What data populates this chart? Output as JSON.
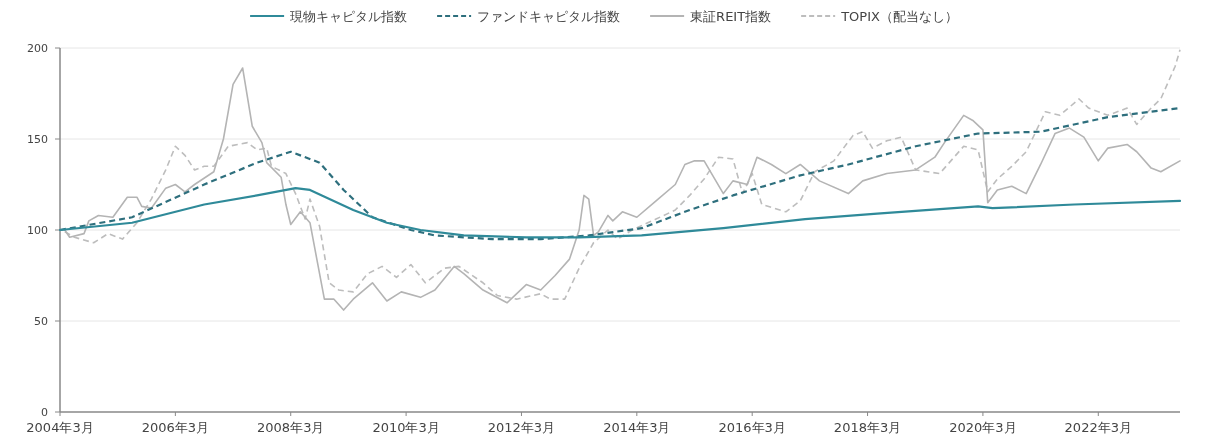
{
  "chart_data": {
    "type": "line",
    "legend": "top",
    "grid": "y",
    "marker": "none",
    "ylim": [
      0,
      200
    ],
    "yticks": [
      0,
      50,
      100,
      150,
      200
    ],
    "xlim": [
      "2004-03",
      "2023-08"
    ],
    "xticks": [
      {
        "value": "2004-03",
        "label": "2004年3月"
      },
      {
        "value": "2006-03",
        "label": "2006年3月"
      },
      {
        "value": "2008-03",
        "label": "2008年3月"
      },
      {
        "value": "2010-03",
        "label": "2010年3月"
      },
      {
        "value": "2012-03",
        "label": "2012年3月"
      },
      {
        "value": "2014-03",
        "label": "2014年3月"
      },
      {
        "value": "2016-03",
        "label": "2016年3月"
      },
      {
        "value": "2018-03",
        "label": "2018年3月"
      },
      {
        "value": "2020-03",
        "label": "2020年3月"
      },
      {
        "value": "2022-03",
        "label": "2022年3月"
      }
    ],
    "series": [
      {
        "name": "現物キャピタル指数",
        "color": "#2f8a99",
        "line_style": "solid",
        "x": [
          "2004-03",
          "2005-06",
          "2006-09",
          "2007-08",
          "2008-04",
          "2008-07",
          "2009-04",
          "2009-11",
          "2010-06",
          "2011-03",
          "2012-04",
          "2013-03",
          "2014-04",
          "2015-09",
          "2017-02",
          "2018-05",
          "2020-02",
          "2020-05",
          "2021-10",
          "2023-08"
        ],
        "values": [
          100,
          104,
          114,
          119,
          123,
          122,
          111,
          104,
          100,
          97,
          96,
          96,
          97,
          101,
          106,
          109,
          113,
          112,
          114,
          116
        ]
      },
      {
        "name": "ファンドキャピタル指数",
        "color": "#2e6f7d",
        "line_style": "dashed",
        "x": [
          "2004-03",
          "2005-06",
          "2006-09",
          "2007-08",
          "2008-03",
          "2008-09",
          "2009-02",
          "2009-08",
          "2010-04",
          "2010-09",
          "2011-09",
          "2012-07",
          "2013-05",
          "2014-04",
          "2015-02",
          "2015-11",
          "2017-01",
          "2017-11",
          "2019-01",
          "2020-02",
          "2021-03",
          "2022-05",
          "2023-08"
        ],
        "values": [
          100,
          107,
          125,
          137,
          143,
          137,
          122,
          107,
          100,
          97,
          95,
          95,
          97,
          101,
          111,
          119,
          130,
          136,
          146,
          153,
          154,
          162,
          167
        ]
      },
      {
        "name": "東証REIT指数",
        "color": "#b4b4b4",
        "line_style": "solid",
        "x": [
          "2004-04",
          "2004-05",
          "2004-08",
          "2004-09",
          "2004-11",
          "2005-02",
          "2005-05",
          "2005-07",
          "2005-08",
          "2005-10",
          "2006-01",
          "2006-03",
          "2006-05",
          "2006-07",
          "2006-11",
          "2007-01",
          "2007-03",
          "2007-05",
          "2007-07",
          "2007-09",
          "2007-10",
          "2008-01",
          "2008-02",
          "2008-03",
          "2008-05",
          "2008-07",
          "2008-08",
          "2008-10",
          "2008-12",
          "2009-02",
          "2009-04",
          "2009-08",
          "2009-11",
          "2010-02",
          "2010-06",
          "2010-09",
          "2011-01",
          "2011-03",
          "2011-07",
          "2011-12",
          "2012-04",
          "2012-07",
          "2012-10",
          "2013-01",
          "2013-03",
          "2013-04",
          "2013-05",
          "2013-06",
          "2013-07",
          "2013-09",
          "2013-10",
          "2013-12",
          "2014-03",
          "2014-07",
          "2014-11",
          "2015-01",
          "2015-03",
          "2015-05",
          "2015-09",
          "2015-11",
          "2016-02",
          "2016-04",
          "2016-07",
          "2016-10",
          "2017-01",
          "2017-05",
          "2017-11",
          "2018-02",
          "2018-07",
          "2019-01",
          "2019-05",
          "2019-07",
          "2019-11",
          "2020-01",
          "2020-03",
          "2020-04",
          "2020-06",
          "2020-09",
          "2020-12",
          "2021-03",
          "2021-06",
          "2021-09",
          "2021-12",
          "2022-03",
          "2022-05",
          "2022-09",
          "2022-11",
          "2023-02",
          "2023-04",
          "2023-08"
        ],
        "values": [
          100,
          96,
          98,
          105,
          108,
          107,
          118,
          118,
          113,
          112,
          123,
          125,
          121,
          125,
          132,
          150,
          180,
          189,
          157,
          148,
          137,
          129,
          114,
          103,
          110,
          104,
          90,
          62,
          62,
          56,
          62,
          71,
          61,
          66,
          63,
          67,
          80,
          76,
          67,
          60,
          70,
          67,
          75,
          84,
          100,
          119,
          117,
          97,
          99,
          108,
          105,
          110,
          107,
          116,
          125,
          136,
          138,
          138,
          120,
          127,
          125,
          140,
          136,
          131,
          136,
          127,
          120,
          127,
          131,
          133,
          140,
          148,
          163,
          160,
          155,
          115,
          122,
          124,
          120,
          136,
          153,
          156,
          151,
          138,
          145,
          147,
          143,
          134,
          132,
          138
        ]
      },
      {
        "name": "TOPIX（配当なし）",
        "color": "#bdbdbd",
        "line_style": "dashed",
        "x": [
          "2004-04",
          "2004-06",
          "2004-10",
          "2005-01",
          "2005-04",
          "2005-07",
          "2005-10",
          "2006-01",
          "2006-03",
          "2006-05",
          "2006-07",
          "2006-09",
          "2006-11",
          "2007-02",
          "2007-06",
          "2007-08",
          "2007-10",
          "2007-11",
          "2008-02",
          "2008-04",
          "2008-06",
          "2008-07",
          "2008-09",
          "2008-11",
          "2009-01",
          "2009-04",
          "2009-07",
          "2009-10",
          "2010-01",
          "2010-04",
          "2010-07",
          "2010-11",
          "2011-02",
          "2011-07",
          "2011-10",
          "2012-02",
          "2012-07",
          "2012-09",
          "2012-12",
          "2013-03",
          "2013-06",
          "2013-09",
          "2013-11",
          "2014-02",
          "2014-07",
          "2014-11",
          "2015-02",
          "2015-05",
          "2015-08",
          "2015-11",
          "2016-01",
          "2016-03",
          "2016-05",
          "2016-10",
          "2017-01",
          "2017-04",
          "2017-08",
          "2017-12",
          "2018-02",
          "2018-04",
          "2018-07",
          "2018-10",
          "2019-01",
          "2019-06",
          "2019-11",
          "2020-02",
          "2020-04",
          "2020-06",
          "2020-09",
          "2020-12",
          "2021-04",
          "2021-07",
          "2021-11",
          "2022-01",
          "2022-05",
          "2022-09",
          "2022-11",
          "2023-02",
          "2023-04",
          "2023-07",
          "2023-08"
        ],
        "values": [
          99,
          96,
          93,
          98,
          95,
          104,
          117,
          133,
          146,
          141,
          133,
          135,
          135,
          146,
          148,
          144,
          145,
          135,
          131,
          120,
          106,
          117,
          102,
          71,
          67,
          66,
          76,
          80,
          74,
          81,
          71,
          79,
          80,
          71,
          64,
          62,
          65,
          62,
          62,
          79,
          93,
          100,
          95,
          100,
          106,
          111,
          119,
          128,
          140,
          139,
          120,
          131,
          114,
          110,
          116,
          132,
          138,
          152,
          154,
          145,
          149,
          151,
          133,
          131,
          146,
          144,
          121,
          128,
          135,
          143,
          165,
          163,
          172,
          167,
          163,
          167,
          158,
          167,
          172,
          190,
          199
        ]
      }
    ]
  }
}
